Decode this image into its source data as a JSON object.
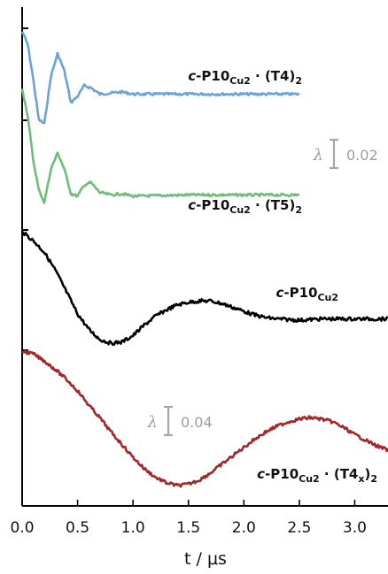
{
  "chart_data": {
    "type": "line",
    "xlabel": "t / μs",
    "x_ticks": [
      "0.0",
      "0.5",
      "1.0",
      "1.5",
      "2.0",
      "2.5",
      "3.0"
    ],
    "xlim": [
      0,
      3.3
    ],
    "scale_bars": [
      {
        "symbol": "λ",
        "value": "0.02"
      },
      {
        "symbol": "λ",
        "value": "0.04"
      }
    ],
    "series": [
      {
        "name_parts": [
          "c",
          "-P10",
          "Cu2",
          " · (T4)",
          "2"
        ],
        "color": "#6aa2d9",
        "t_end": 2.5,
        "points": [
          [
            0,
            0.97
          ],
          [
            0.05,
            0.85
          ],
          [
            0.1,
            0.52
          ],
          [
            0.15,
            0.14
          ],
          [
            0.2,
            0.1
          ],
          [
            0.26,
            0.55
          ],
          [
            0.32,
            0.76
          ],
          [
            0.38,
            0.6
          ],
          [
            0.44,
            0.3
          ],
          [
            0.5,
            0.36
          ],
          [
            0.56,
            0.46
          ],
          [
            0.62,
            0.44
          ],
          [
            0.7,
            0.38
          ],
          [
            0.8,
            0.39
          ],
          [
            0.9,
            0.4
          ],
          [
            1.0,
            0.38
          ],
          [
            1.5,
            0.38
          ],
          [
            2.0,
            0.38
          ],
          [
            2.5,
            0.38
          ]
        ]
      },
      {
        "name_parts": [
          "c",
          "-P10",
          "Cu2",
          " · (T5)",
          "2"
        ],
        "color": "#6dbd7b",
        "t_end": 2.5,
        "points": [
          [
            0,
            1.2
          ],
          [
            0.05,
            0.98
          ],
          [
            0.1,
            0.62
          ],
          [
            0.15,
            0.38
          ],
          [
            0.2,
            0.28
          ],
          [
            0.26,
            0.55
          ],
          [
            0.32,
            0.68
          ],
          [
            0.38,
            0.55
          ],
          [
            0.44,
            0.35
          ],
          [
            0.5,
            0.33
          ],
          [
            0.56,
            0.42
          ],
          [
            0.62,
            0.44
          ],
          [
            0.7,
            0.36
          ],
          [
            0.8,
            0.34
          ],
          [
            0.9,
            0.35
          ],
          [
            1.0,
            0.33
          ],
          [
            1.5,
            0.34
          ],
          [
            2.0,
            0.34
          ],
          [
            2.5,
            0.34
          ]
        ]
      },
      {
        "name_parts": [
          "c",
          "-P10",
          "Cu2",
          "",
          ""
        ],
        "color": "#000000",
        "t_end": 3.3,
        "points": [
          [
            0,
            1.0
          ],
          [
            0.1,
            0.93
          ],
          [
            0.2,
            0.84
          ],
          [
            0.3,
            0.7
          ],
          [
            0.4,
            0.53
          ],
          [
            0.5,
            0.36
          ],
          [
            0.6,
            0.24
          ],
          [
            0.7,
            0.16
          ],
          [
            0.8,
            0.13
          ],
          [
            0.9,
            0.14
          ],
          [
            1.0,
            0.19
          ],
          [
            1.1,
            0.27
          ],
          [
            1.2,
            0.34
          ],
          [
            1.3,
            0.39
          ],
          [
            1.4,
            0.43
          ],
          [
            1.5,
            0.45
          ],
          [
            1.6,
            0.46
          ],
          [
            1.7,
            0.46
          ],
          [
            1.8,
            0.44
          ],
          [
            1.9,
            0.41
          ],
          [
            2.0,
            0.38
          ],
          [
            2.1,
            0.35
          ],
          [
            2.2,
            0.33
          ],
          [
            2.3,
            0.32
          ],
          [
            2.5,
            0.31
          ],
          [
            2.7,
            0.32
          ],
          [
            2.9,
            0.32
          ],
          [
            3.1,
            0.32
          ],
          [
            3.3,
            0.32
          ]
        ]
      },
      {
        "name_parts": [
          "c",
          "-P10",
          "Cu2",
          " · (T4",
          "x",
          ")",
          "2"
        ],
        "color": "#a3262b",
        "t_end": 3.3,
        "points": [
          [
            0,
            1.0
          ],
          [
            0.1,
            0.98
          ],
          [
            0.2,
            0.93
          ],
          [
            0.3,
            0.87
          ],
          [
            0.4,
            0.8
          ],
          [
            0.5,
            0.72
          ],
          [
            0.6,
            0.62
          ],
          [
            0.7,
            0.53
          ],
          [
            0.8,
            0.43
          ],
          [
            0.9,
            0.34
          ],
          [
            1.0,
            0.25
          ],
          [
            1.1,
            0.17
          ],
          [
            1.2,
            0.11
          ],
          [
            1.3,
            0.07
          ],
          [
            1.4,
            0.05
          ],
          [
            1.5,
            0.06
          ],
          [
            1.6,
            0.09
          ],
          [
            1.7,
            0.14
          ],
          [
            1.8,
            0.2
          ],
          [
            1.9,
            0.26
          ],
          [
            2.0,
            0.32
          ],
          [
            2.1,
            0.38
          ],
          [
            2.2,
            0.43
          ],
          [
            2.3,
            0.47
          ],
          [
            2.4,
            0.5
          ],
          [
            2.5,
            0.52
          ],
          [
            2.6,
            0.53
          ],
          [
            2.7,
            0.52
          ],
          [
            2.8,
            0.5
          ],
          [
            2.9,
            0.46
          ],
          [
            3.0,
            0.41
          ],
          [
            3.1,
            0.37
          ],
          [
            3.2,
            0.33
          ],
          [
            3.3,
            0.3
          ]
        ]
      }
    ]
  }
}
